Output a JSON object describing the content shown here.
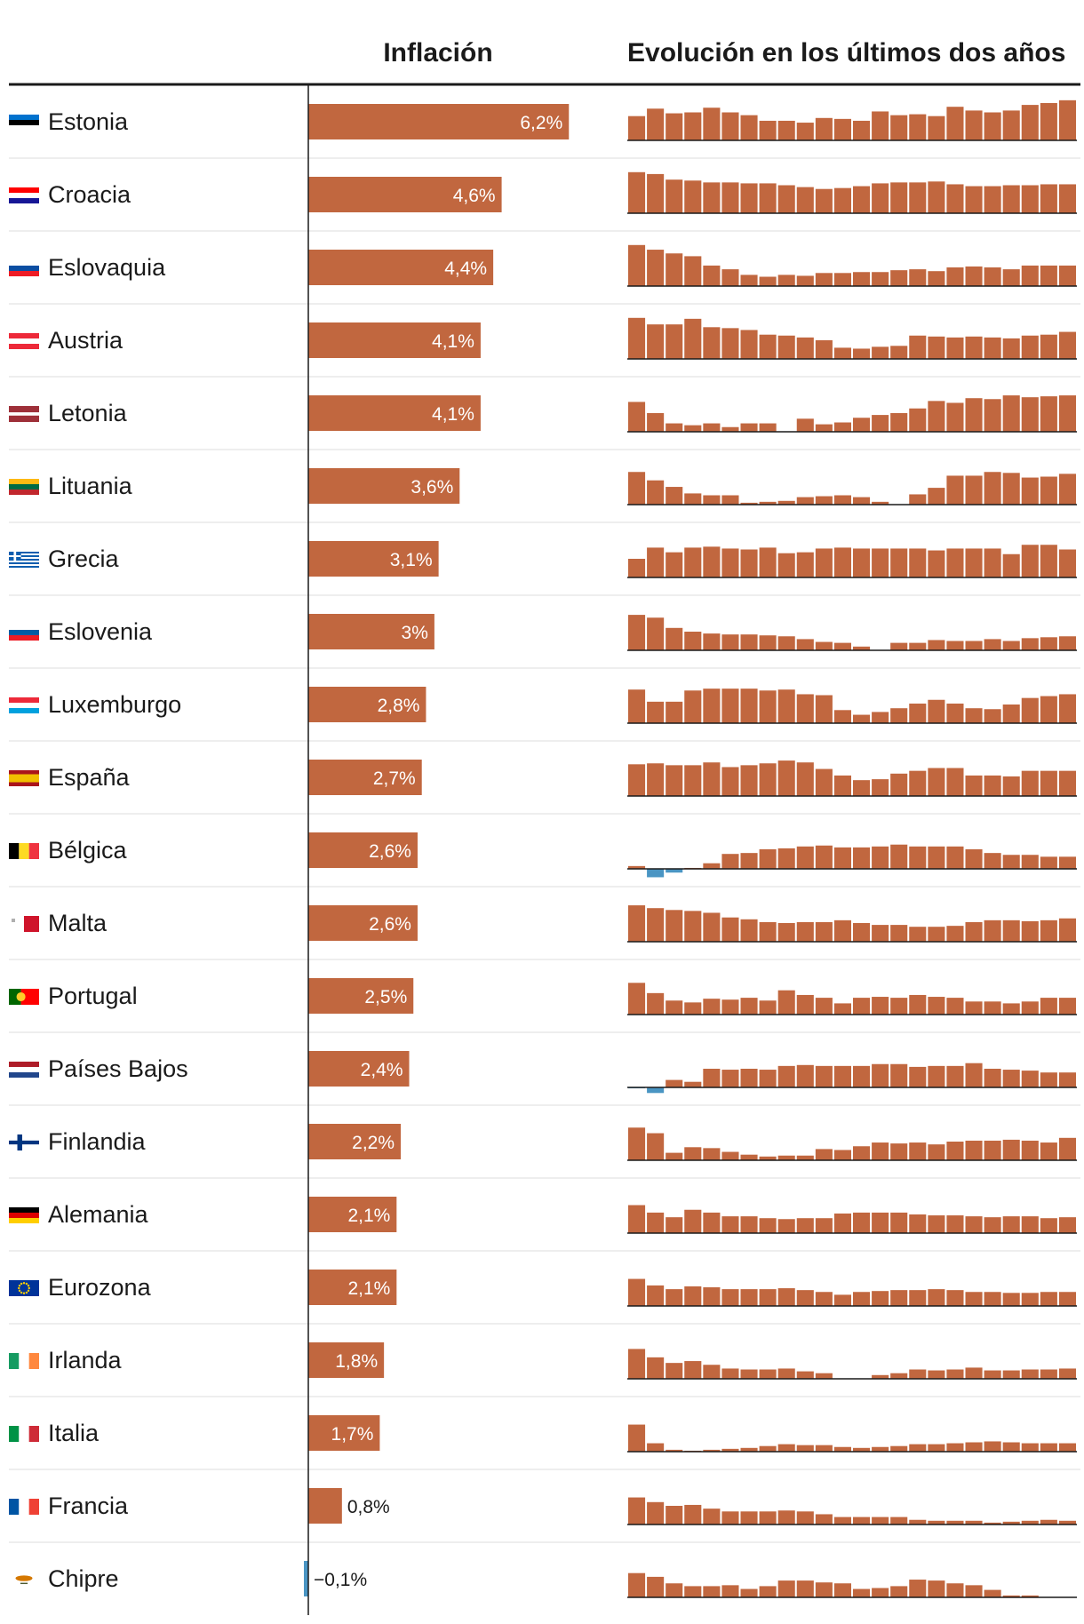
{
  "headers": {
    "inflation": "Inflación",
    "evolution": "Evolución en los últimos dos años"
  },
  "colors": {
    "positive": "#c1673f",
    "negative": "#4a95c3",
    "text": "#1a1a1a",
    "row_divider": "#dddddd",
    "axis": "#1a1a1a"
  },
  "chart_data": [
    {
      "type": "bar",
      "title": "Inflación",
      "orientation": "horizontal",
      "unit": "%",
      "categories": [
        "Estonia",
        "Croacia",
        "Eslovaquia",
        "Austria",
        "Letonia",
        "Lituania",
        "Grecia",
        "Eslovenia",
        "Luxemburgo",
        "España",
        "Bélgica",
        "Malta",
        "Portugal",
        "Países Bajos",
        "Finlandia",
        "Alemania",
        "Eurozona",
        "Irlanda",
        "Italia",
        "Francia",
        "Chipre"
      ],
      "values": [
        6.2,
        4.6,
        4.4,
        4.1,
        4.1,
        3.6,
        3.1,
        3.0,
        2.8,
        2.7,
        2.6,
        2.6,
        2.5,
        2.4,
        2.2,
        2.1,
        2.1,
        1.8,
        1.7,
        0.8,
        -0.1
      ],
      "labels": [
        "6,2%",
        "4,6%",
        "4,4%",
        "4,1%",
        "4,1%",
        "3,6%",
        "3,1%",
        "3%",
        "2,8%",
        "2,7%",
        "2,6%",
        "2,6%",
        "2,5%",
        "2,4%",
        "2,2%",
        "2,1%",
        "2,1%",
        "1,8%",
        "1,7%",
        "0,8%",
        "−0,1%"
      ],
      "flags": [
        "flag-estonia",
        "flag-croatia",
        "flag-slovakia",
        "flag-austria",
        "flag-latvia",
        "flag-lithuania",
        "flag-greece",
        "flag-slovenia",
        "flag-luxembourg",
        "flag-spain",
        "flag-belgium",
        "flag-malta",
        "flag-portugal",
        "flag-netherlands",
        "flag-finland",
        "flag-germany",
        "flag-eurozone",
        "flag-ireland",
        "flag-italy",
        "flag-france",
        "flag-cyprus"
      ],
      "xlim": [
        -0.2,
        6.3
      ]
    },
    {
      "type": "bar",
      "title": "Evolución en los últimos dos años",
      "unit": "%",
      "months_per_country": 24,
      "series": [
        {
          "name": "Estonia",
          "values": [
            2.6,
            3.4,
            2.9,
            3.0,
            3.5,
            3.0,
            2.7,
            2.1,
            2.1,
            1.9,
            2.4,
            2.3,
            2.1,
            3.1,
            2.7,
            2.8,
            2.6,
            3.6,
            3.2,
            3.0,
            3.2,
            3.8,
            4.0,
            4.3
          ]
        },
        {
          "name": "Croacia",
          "values": [
            4.4,
            4.2,
            3.6,
            3.5,
            3.3,
            3.3,
            3.2,
            3.2,
            3.0,
            2.8,
            2.6,
            2.7,
            2.9,
            3.2,
            3.3,
            3.3,
            3.4,
            3.1,
            2.9,
            2.9,
            3.0,
            3.0,
            3.1,
            3.1
          ]
        },
        {
          "name": "Eslovaquia",
          "values": [
            4.4,
            3.9,
            3.5,
            3.2,
            2.2,
            1.8,
            1.2,
            1.0,
            1.2,
            1.1,
            1.4,
            1.4,
            1.5,
            1.5,
            1.7,
            1.8,
            1.6,
            2.0,
            2.1,
            2.0,
            1.8,
            2.2,
            2.2,
            2.2
          ]
        },
        {
          "name": "Austria",
          "values": [
            4.4,
            3.7,
            3.7,
            4.3,
            3.4,
            3.3,
            3.1,
            2.6,
            2.5,
            2.3,
            2.0,
            1.2,
            1.1,
            1.3,
            1.4,
            2.5,
            2.4,
            2.3,
            2.4,
            2.3,
            2.2,
            2.5,
            2.6,
            2.9
          ]
        },
        {
          "name": "Letonia",
          "values": [
            3.2,
            2.0,
            0.9,
            0.7,
            0.9,
            0.5,
            0.9,
            0.9,
            0.0,
            1.4,
            0.8,
            1.0,
            1.5,
            1.8,
            2.0,
            2.5,
            3.3,
            3.1,
            3.6,
            3.5,
            3.9,
            3.7,
            3.8,
            3.9
          ]
        },
        {
          "name": "Lituania",
          "values": [
            3.5,
            2.6,
            1.9,
            1.2,
            1.0,
            1.0,
            0.2,
            0.3,
            0.4,
            0.8,
            0.9,
            1.0,
            0.8,
            0.3,
            0.0,
            1.1,
            1.8,
            3.1,
            3.1,
            3.5,
            3.4,
            2.9,
            3.0,
            3.3
          ]
        },
        {
          "name": "Grecia",
          "values": [
            2.0,
            3.2,
            2.7,
            3.2,
            3.3,
            3.1,
            3.0,
            3.2,
            2.6,
            2.7,
            3.1,
            3.2,
            3.1,
            3.1,
            3.1,
            3.1,
            2.9,
            3.1,
            3.1,
            3.1,
            2.5,
            3.5,
            3.5,
            3.0
          ]
        },
        {
          "name": "Eslovenia",
          "values": [
            3.8,
            3.5,
            2.4,
            2.0,
            1.8,
            1.7,
            1.7,
            1.6,
            1.5,
            1.2,
            0.9,
            0.8,
            0.4,
            0.0,
            0.8,
            0.8,
            1.1,
            1.0,
            1.0,
            1.2,
            1.0,
            1.3,
            1.4,
            1.5
          ]
        },
        {
          "name": "Luxemburgo",
          "values": [
            3.6,
            2.3,
            2.3,
            3.5,
            3.7,
            3.7,
            3.7,
            3.5,
            3.6,
            3.1,
            3.0,
            1.4,
            0.9,
            1.2,
            1.6,
            2.1,
            2.5,
            2.1,
            1.6,
            1.5,
            2.0,
            2.7,
            2.9,
            3.1
          ]
        },
        {
          "name": "España",
          "values": [
            3.4,
            3.5,
            3.3,
            3.3,
            3.6,
            3.1,
            3.3,
            3.5,
            3.8,
            3.6,
            2.9,
            2.2,
            1.7,
            1.8,
            2.4,
            2.7,
            3.0,
            3.0,
            2.2,
            2.2,
            2.1,
            2.7,
            2.7,
            2.7
          ]
        },
        {
          "name": "Bélgica",
          "values": [
            0.3,
            -0.9,
            -0.4,
            0.1,
            0.6,
            1.6,
            1.7,
            2.1,
            2.2,
            2.4,
            2.5,
            2.3,
            2.3,
            2.4,
            2.6,
            2.4,
            2.4,
            2.4,
            2.1,
            1.7,
            1.5,
            1.5,
            1.3,
            1.3
          ]
        },
        {
          "name": "Malta",
          "values": [
            3.9,
            3.6,
            3.4,
            3.3,
            3.1,
            2.6,
            2.4,
            2.1,
            2.0,
            2.1,
            2.1,
            2.3,
            2.0,
            1.8,
            1.8,
            1.6,
            1.6,
            1.7,
            2.1,
            2.3,
            2.3,
            2.2,
            2.3,
            2.5
          ]
        },
        {
          "name": "Portugal",
          "values": [
            3.4,
            2.3,
            1.5,
            1.3,
            1.7,
            1.6,
            1.8,
            1.5,
            2.6,
            2.1,
            1.8,
            1.2,
            1.8,
            1.9,
            1.8,
            2.1,
            1.9,
            1.8,
            1.4,
            1.4,
            1.2,
            1.4,
            1.8,
            1.8
          ]
        },
        {
          "name": "Países Bajos",
          "values": [
            -0.1,
            -0.6,
            0.8,
            0.6,
            2.0,
            1.9,
            2.0,
            1.9,
            2.3,
            2.4,
            2.3,
            2.3,
            2.3,
            2.5,
            2.5,
            2.2,
            2.3,
            2.3,
            2.6,
            2.0,
            1.9,
            1.8,
            1.6,
            1.6
          ]
        },
        {
          "name": "Finlandia",
          "values": [
            3.5,
            2.9,
            0.8,
            1.4,
            1.3,
            0.9,
            0.6,
            0.4,
            0.5,
            0.5,
            1.2,
            1.1,
            1.5,
            1.9,
            1.8,
            1.9,
            1.7,
            2.0,
            2.1,
            2.1,
            2.2,
            2.1,
            1.9,
            2.4
          ]
        },
        {
          "name": "Alemania",
          "values": [
            3.0,
            2.2,
            1.7,
            2.5,
            2.2,
            1.8,
            1.8,
            1.6,
            1.5,
            1.6,
            1.6,
            2.1,
            2.2,
            2.2,
            2.2,
            2.0,
            1.9,
            1.9,
            1.8,
            1.7,
            1.8,
            1.8,
            1.6,
            1.7
          ]
        },
        {
          "name": "Eurozona",
          "values": [
            2.9,
            2.2,
            1.8,
            2.1,
            2.0,
            1.8,
            1.8,
            1.8,
            1.9,
            1.7,
            1.5,
            1.2,
            1.5,
            1.6,
            1.7,
            1.7,
            1.8,
            1.7,
            1.5,
            1.5,
            1.4,
            1.4,
            1.5,
            1.5
          ]
        },
        {
          "name": "Irlanda",
          "values": [
            3.2,
            2.3,
            1.7,
            1.9,
            1.5,
            1.1,
            1.0,
            1.0,
            1.1,
            0.8,
            0.6,
            0.0,
            0.0,
            0.4,
            0.6,
            1.0,
            0.9,
            1.0,
            1.2,
            0.9,
            0.9,
            1.0,
            1.0,
            1.1
          ]
        },
        {
          "name": "Italia",
          "values": [
            2.9,
            0.9,
            0.2,
            0.1,
            0.2,
            0.3,
            0.4,
            0.6,
            0.8,
            0.7,
            0.7,
            0.5,
            0.4,
            0.5,
            0.6,
            0.8,
            0.8,
            0.9,
            1.0,
            1.1,
            1.0,
            0.9,
            0.9,
            0.9
          ]
        },
        {
          "name": "Francia",
          "values": [
            2.9,
            2.4,
            2.0,
            2.1,
            1.7,
            1.4,
            1.4,
            1.4,
            1.5,
            1.4,
            1.1,
            0.8,
            0.8,
            0.8,
            0.8,
            0.5,
            0.4,
            0.4,
            0.4,
            0.2,
            0.3,
            0.4,
            0.5,
            0.4
          ]
        },
        {
          "name": "Chipre",
          "values": [
            2.6,
            2.2,
            1.5,
            1.2,
            1.2,
            1.3,
            0.9,
            1.2,
            1.8,
            1.8,
            1.6,
            1.5,
            0.9,
            1.0,
            1.2,
            1.9,
            1.8,
            1.5,
            1.3,
            0.8,
            0.2,
            0.2,
            0.0,
            0.0
          ]
        }
      ]
    }
  ]
}
